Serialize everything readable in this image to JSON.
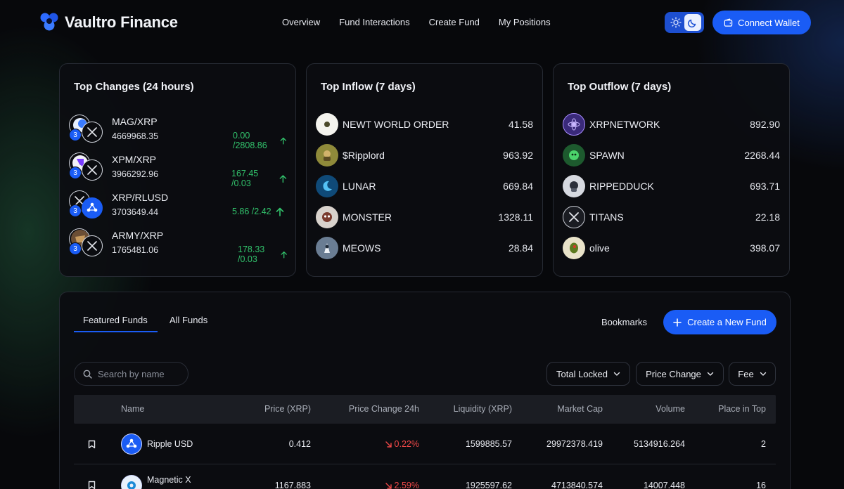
{
  "app": {
    "name": "Vaultro Finance"
  },
  "nav": {
    "items": [
      "Overview",
      "Fund Interactions",
      "Create Fund",
      "My Positions"
    ]
  },
  "header": {
    "connect_wallet": "Connect Wallet"
  },
  "top_changes": {
    "title": "Top Changes (24 hours)",
    "rows": [
      {
        "pair": "MAG/XRP",
        "amount": "4669968.35",
        "change": "0.00 /2808.86",
        "badge": "3"
      },
      {
        "pair": "XPM/XRP",
        "amount": "3966292.96",
        "change": "167.45 /0.03",
        "badge": "3"
      },
      {
        "pair": "XRP/RLUSD",
        "amount": "3703649.44",
        "change": "5.86 /2.42",
        "badge": "3"
      },
      {
        "pair": "ARMY/XRP",
        "amount": "1765481.06",
        "change": "178.33 /0.03",
        "badge": "3"
      }
    ]
  },
  "top_inflow": {
    "title": "Top Inflow (7 days)",
    "rows": [
      {
        "name": "NEWT WORLD ORDER",
        "value": "41.58"
      },
      {
        "name": "$Ripplord",
        "value": "963.92"
      },
      {
        "name": "LUNAR",
        "value": "669.84"
      },
      {
        "name": "MONSTER",
        "value": "1328.11"
      },
      {
        "name": "MEOWS",
        "value": "28.84"
      }
    ]
  },
  "top_outflow": {
    "title": "Top Outflow (7 days)",
    "rows": [
      {
        "name": "XRPNETWORK",
        "value": "892.90"
      },
      {
        "name": "SPAWN",
        "value": "2268.44"
      },
      {
        "name": "RIPPEDDUCK",
        "value": "693.71"
      },
      {
        "name": "TITANS",
        "value": "22.18"
      },
      {
        "name": "olive",
        "value": "398.07"
      }
    ]
  },
  "funds": {
    "tabs": [
      "Featured Funds",
      "All Funds"
    ],
    "active_tab": "Featured Funds",
    "bookmarks": "Bookmarks",
    "create_button": "Create a New Fund",
    "search_placeholder": "Search by name",
    "filters": [
      "Total Locked",
      "Price Change",
      "Fee"
    ],
    "columns": [
      "Name",
      "Price (XRP)",
      "Price Change 24h",
      "Liquidity (XRP)",
      "Market Cap",
      "Volume",
      "Place in Top"
    ],
    "rows": [
      {
        "name": "Ripple USD",
        "price": "0.412",
        "change": "0.22%",
        "liquidity": "1599885.57",
        "market_cap": "29972378.419",
        "volume": "5134916.264",
        "place": "2"
      },
      {
        "name": "Magnetic X",
        "price": "1167.883",
        "change": "2.59%",
        "liquidity": "1925597.62",
        "market_cap": "4713840.574",
        "volume": "14007.448",
        "place": "16"
      }
    ]
  },
  "colors": {
    "accent": "#1a5cf5",
    "positive": "#32c36c",
    "negative": "#f04848",
    "background": "#07080b"
  }
}
